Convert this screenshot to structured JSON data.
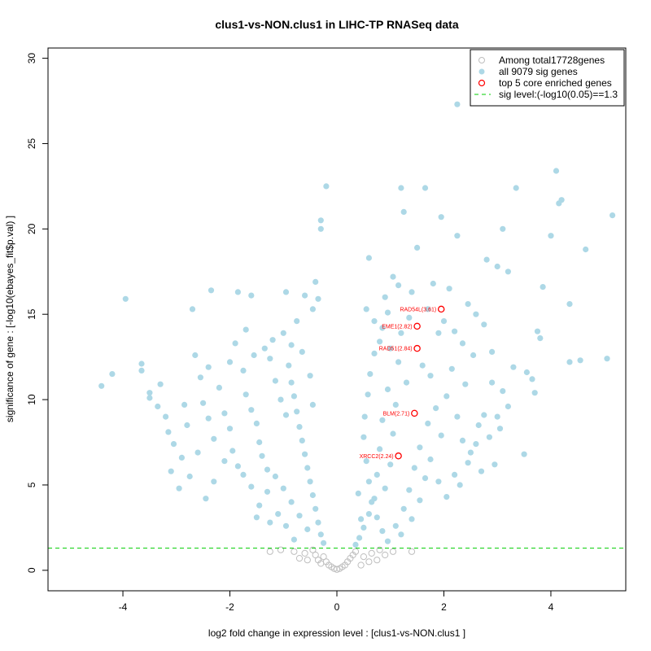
{
  "chart_data": {
    "type": "scatter",
    "title": "clus1-vs-NON.clus1 in LIHC-TP RNASeq data",
    "xlabel": "log2 fold change in expression level : [clus1-vs-NON.clus1 ]",
    "ylabel": "significance of gene : [-log10(ebayes_fit$p.val) ]",
    "xlim": [
      -5.4,
      5.4
    ],
    "ylim": [
      -1.2,
      30.6
    ],
    "x_ticks": [
      -4,
      -2,
      0,
      2,
      4
    ],
    "x_tick_labels": [
      "-4",
      "-2",
      "0",
      "2",
      "4"
    ],
    "y_ticks": [
      0,
      5,
      10,
      15,
      20,
      25,
      30
    ],
    "y_tick_labels": [
      "0",
      "5",
      "10",
      "15",
      "20",
      "25",
      "30"
    ],
    "sig_level": 1.3,
    "legend": {
      "position": "top-right",
      "entries": [
        {
          "label": "Among total17728genes",
          "symbol": "open-circle",
          "color": "#bebebe"
        },
        {
          "label": "all 9079 sig genes",
          "symbol": "filled-circle",
          "color": "#add8e6"
        },
        {
          "label": "top 5 core enriched genes",
          "symbol": "open-circle",
          "color": "#ff0000"
        },
        {
          "label": "sig level:(-log10(0.05)==1.3",
          "symbol": "dashed-line",
          "color": "#00cd00"
        }
      ]
    },
    "series": [
      {
        "name": "all 9079 sig genes",
        "color": "#add8e6",
        "points": [
          {
            "x": 2.25,
            "y": 27.3
          },
          {
            "x": 4.1,
            "y": 23.4
          },
          {
            "x": 4.2,
            "y": 21.7
          },
          {
            "x": 4.15,
            "y": 21.5
          },
          {
            "x": 5.15,
            "y": 20.8
          },
          {
            "x": 3.35,
            "y": 22.4
          },
          {
            "x": 1.65,
            "y": 22.4
          },
          {
            "x": 1.2,
            "y": 22.4
          },
          {
            "x": 1.25,
            "y": 21.0
          },
          {
            "x": 1.95,
            "y": 20.7
          },
          {
            "x": 3.1,
            "y": 20.0
          },
          {
            "x": 4.0,
            "y": 19.6
          },
          {
            "x": 2.25,
            "y": 19.6
          },
          {
            "x": 4.65,
            "y": 18.8
          },
          {
            "x": 1.5,
            "y": 18.9
          },
          {
            "x": 0.6,
            "y": 18.3
          },
          {
            "x": 2.8,
            "y": 18.2
          },
          {
            "x": 3.0,
            "y": 17.8
          },
          {
            "x": 3.2,
            "y": 17.5
          },
          {
            "x": 3.85,
            "y": 16.6
          },
          {
            "x": 4.35,
            "y": 15.6
          },
          {
            "x": 3.75,
            "y": 14.0
          },
          {
            "x": 3.8,
            "y": 13.6
          },
          {
            "x": 4.35,
            "y": 12.2
          },
          {
            "x": 4.55,
            "y": 12.3
          },
          {
            "x": 5.05,
            "y": 12.4
          },
          {
            "x": 3.55,
            "y": 11.6
          },
          {
            "x": 3.65,
            "y": 11.2
          },
          {
            "x": 3.7,
            "y": 10.4
          },
          {
            "x": 2.9,
            "y": 12.8
          },
          {
            "x": 3.2,
            "y": 9.6
          },
          {
            "x": 3.5,
            "y": 6.8
          },
          {
            "x": 3.05,
            "y": 8.3
          },
          {
            "x": 2.75,
            "y": 9.1
          },
          {
            "x": 2.6,
            "y": 7.4
          },
          {
            "x": 2.2,
            "y": 5.6
          },
          {
            "x": 2.3,
            "y": 5.0
          },
          {
            "x": 2.05,
            "y": 4.3
          },
          {
            "x": 1.9,
            "y": 5.2
          },
          {
            "x": 2.45,
            "y": 6.3
          },
          {
            "x": 0.55,
            "y": 15.3
          },
          {
            "x": 0.7,
            "y": 14.6
          },
          {
            "x": 0.85,
            "y": 14.2
          },
          {
            "x": 0.9,
            "y": 16.0
          },
          {
            "x": 1.05,
            "y": 17.2
          },
          {
            "x": 1.15,
            "y": 16.7
          },
          {
            "x": 0.95,
            "y": 15.1
          },
          {
            "x": 1.4,
            "y": 16.3
          },
          {
            "x": 1.8,
            "y": 16.8
          },
          {
            "x": 2.1,
            "y": 16.5
          },
          {
            "x": 2.45,
            "y": 15.6
          },
          {
            "x": 2.6,
            "y": 15.0
          },
          {
            "x": 2.75,
            "y": 14.4
          },
          {
            "x": 1.9,
            "y": 13.9
          },
          {
            "x": 2.35,
            "y": 13.3
          },
          {
            "x": 2.55,
            "y": 12.6
          },
          {
            "x": 1.6,
            "y": 12.0
          },
          {
            "x": 1.75,
            "y": 11.4
          },
          {
            "x": 2.15,
            "y": 11.8
          },
          {
            "x": 2.4,
            "y": 10.9
          },
          {
            "x": 2.05,
            "y": 10.2
          },
          {
            "x": 1.85,
            "y": 9.5
          },
          {
            "x": 2.25,
            "y": 9.0
          },
          {
            "x": 1.7,
            "y": 8.6
          },
          {
            "x": 1.95,
            "y": 7.9
          },
          {
            "x": 1.55,
            "y": 7.2
          },
          {
            "x": 1.75,
            "y": 6.5
          },
          {
            "x": 1.45,
            "y": 6.0
          },
          {
            "x": 1.65,
            "y": 5.4
          },
          {
            "x": 1.35,
            "y": 4.7
          },
          {
            "x": 1.55,
            "y": 4.1
          },
          {
            "x": 1.25,
            "y": 3.6
          },
          {
            "x": 1.4,
            "y": 3.0
          },
          {
            "x": 1.1,
            "y": 2.6
          },
          {
            "x": 1.2,
            "y": 2.1
          },
          {
            "x": 0.95,
            "y": 1.7
          },
          {
            "x": 0.85,
            "y": 2.3
          },
          {
            "x": 0.75,
            "y": 3.1
          },
          {
            "x": 0.65,
            "y": 4.0
          },
          {
            "x": 0.6,
            "y": 5.2
          },
          {
            "x": 0.55,
            "y": 6.4
          },
          {
            "x": 0.5,
            "y": 7.8
          },
          {
            "x": 0.52,
            "y": 9.0
          },
          {
            "x": 0.58,
            "y": 10.3
          },
          {
            "x": 0.62,
            "y": 11.5
          },
          {
            "x": 0.7,
            "y": 12.7
          },
          {
            "x": 0.8,
            "y": 13.4
          },
          {
            "x": 1.0,
            "y": 13.0
          },
          {
            "x": 1.15,
            "y": 12.2
          },
          {
            "x": 1.3,
            "y": 11.0
          },
          {
            "x": 0.95,
            "y": 10.6
          },
          {
            "x": 1.1,
            "y": 9.7
          },
          {
            "x": 0.85,
            "y": 8.8
          },
          {
            "x": 1.05,
            "y": 8.0
          },
          {
            "x": 0.8,
            "y": 7.1
          },
          {
            "x": 1.0,
            "y": 6.2
          },
          {
            "x": 0.75,
            "y": 5.6
          },
          {
            "x": 0.9,
            "y": 4.8
          },
          {
            "x": 0.7,
            "y": 4.2
          },
          {
            "x": 0.6,
            "y": 3.3
          },
          {
            "x": 0.5,
            "y": 2.5
          },
          {
            "x": 0.42,
            "y": 1.9
          },
          {
            "x": 0.35,
            "y": 1.5
          },
          {
            "x": 0.45,
            "y": 3.0
          },
          {
            "x": 1.2,
            "y": 13.9
          },
          {
            "x": 1.35,
            "y": 14.8
          },
          {
            "x": 1.7,
            "y": 15.3
          },
          {
            "x": 2.0,
            "y": 14.6
          },
          {
            "x": 2.2,
            "y": 14.0
          },
          {
            "x": 2.9,
            "y": 11.0
          },
          {
            "x": 3.1,
            "y": 10.5
          },
          {
            "x": 3.3,
            "y": 11.9
          },
          {
            "x": 2.65,
            "y": 8.5
          },
          {
            "x": 2.85,
            "y": 7.8
          },
          {
            "x": 2.5,
            "y": 6.9
          },
          {
            "x": 2.35,
            "y": 7.6
          },
          {
            "x": 3.0,
            "y": 9.0
          },
          {
            "x": 2.95,
            "y": 6.2
          },
          {
            "x": 2.7,
            "y": 5.8
          },
          {
            "x": 0.4,
            "y": 4.5
          },
          {
            "x": -0.2,
            "y": 22.5
          },
          {
            "x": -0.3,
            "y": 20.5
          },
          {
            "x": -0.3,
            "y": 20.0
          },
          {
            "x": -0.4,
            "y": 16.9
          },
          {
            "x": -0.35,
            "y": 15.9
          },
          {
            "x": -0.6,
            "y": 16.1
          },
          {
            "x": -0.45,
            "y": 15.3
          },
          {
            "x": -0.95,
            "y": 16.3
          },
          {
            "x": -1.85,
            "y": 16.3
          },
          {
            "x": -1.6,
            "y": 16.1
          },
          {
            "x": -0.75,
            "y": 14.6
          },
          {
            "x": -1.0,
            "y": 13.9
          },
          {
            "x": -1.2,
            "y": 13.5
          },
          {
            "x": -0.85,
            "y": 13.2
          },
          {
            "x": -1.7,
            "y": 14.1
          },
          {
            "x": -1.9,
            "y": 13.3
          },
          {
            "x": -2.35,
            "y": 16.4
          },
          {
            "x": -2.7,
            "y": 15.3
          },
          {
            "x": -3.95,
            "y": 15.9
          },
          {
            "x": -4.2,
            "y": 11.5
          },
          {
            "x": -4.4,
            "y": 10.8
          },
          {
            "x": -3.65,
            "y": 12.1
          },
          {
            "x": -3.65,
            "y": 11.7
          },
          {
            "x": -3.5,
            "y": 10.4
          },
          {
            "x": -3.5,
            "y": 10.1
          },
          {
            "x": -3.3,
            "y": 10.9
          },
          {
            "x": -3.2,
            "y": 9.0
          },
          {
            "x": -3.15,
            "y": 8.1
          },
          {
            "x": -3.05,
            "y": 7.4
          },
          {
            "x": -2.9,
            "y": 6.6
          },
          {
            "x": -2.8,
            "y": 8.5
          },
          {
            "x": -2.65,
            "y": 12.6
          },
          {
            "x": -2.55,
            "y": 11.3
          },
          {
            "x": -2.5,
            "y": 9.8
          },
          {
            "x": -2.4,
            "y": 8.9
          },
          {
            "x": -2.3,
            "y": 7.7
          },
          {
            "x": -2.2,
            "y": 10.7
          },
          {
            "x": -2.1,
            "y": 9.2
          },
          {
            "x": -2.0,
            "y": 8.3
          },
          {
            "x": -1.95,
            "y": 7.0
          },
          {
            "x": -1.85,
            "y": 6.1
          },
          {
            "x": -1.75,
            "y": 11.7
          },
          {
            "x": -1.7,
            "y": 10.3
          },
          {
            "x": -1.6,
            "y": 9.4
          },
          {
            "x": -1.5,
            "y": 8.6
          },
          {
            "x": -1.45,
            "y": 7.5
          },
          {
            "x": -1.4,
            "y": 6.7
          },
          {
            "x": -1.3,
            "y": 5.9
          },
          {
            "x": -1.25,
            "y": 12.4
          },
          {
            "x": -1.15,
            "y": 11.1
          },
          {
            "x": -1.05,
            "y": 10.0
          },
          {
            "x": -0.95,
            "y": 9.1
          },
          {
            "x": -0.9,
            "y": 12.0
          },
          {
            "x": -0.85,
            "y": 11.0
          },
          {
            "x": -0.8,
            "y": 10.2
          },
          {
            "x": -0.75,
            "y": 9.3
          },
          {
            "x": -0.7,
            "y": 8.4
          },
          {
            "x": -0.65,
            "y": 7.6
          },
          {
            "x": -0.6,
            "y": 6.8
          },
          {
            "x": -0.55,
            "y": 6.0
          },
          {
            "x": -0.5,
            "y": 5.2
          },
          {
            "x": -0.45,
            "y": 4.4
          },
          {
            "x": -0.4,
            "y": 3.6
          },
          {
            "x": -0.35,
            "y": 2.8
          },
          {
            "x": -0.3,
            "y": 2.1
          },
          {
            "x": -0.25,
            "y": 1.6
          },
          {
            "x": -0.55,
            "y": 2.4
          },
          {
            "x": -0.7,
            "y": 3.2
          },
          {
            "x": -0.85,
            "y": 4.0
          },
          {
            "x": -1.0,
            "y": 4.8
          },
          {
            "x": -1.15,
            "y": 5.5
          },
          {
            "x": -1.3,
            "y": 4.6
          },
          {
            "x": -1.45,
            "y": 3.8
          },
          {
            "x": -1.6,
            "y": 4.9
          },
          {
            "x": -1.75,
            "y": 5.6
          },
          {
            "x": -1.1,
            "y": 3.3
          },
          {
            "x": -0.95,
            "y": 2.6
          },
          {
            "x": -1.25,
            "y": 2.8
          },
          {
            "x": -1.5,
            "y": 3.1
          },
          {
            "x": -0.8,
            "y": 1.8
          },
          {
            "x": -2.1,
            "y": 6.4
          },
          {
            "x": -2.3,
            "y": 5.2
          },
          {
            "x": -2.45,
            "y": 4.2
          },
          {
            "x": -2.6,
            "y": 6.9
          },
          {
            "x": -2.75,
            "y": 5.5
          },
          {
            "x": -2.95,
            "y": 4.8
          },
          {
            "x": -3.1,
            "y": 5.8
          },
          {
            "x": -2.0,
            "y": 12.2
          },
          {
            "x": -1.35,
            "y": 13.0
          },
          {
            "x": -1.55,
            "y": 12.6
          },
          {
            "x": -2.85,
            "y": 9.7
          },
          {
            "x": -3.35,
            "y": 9.6
          },
          {
            "x": -2.4,
            "y": 11.9
          },
          {
            "x": -0.65,
            "y": 12.8
          },
          {
            "x": -0.5,
            "y": 11.4
          },
          {
            "x": -0.45,
            "y": 9.7
          }
        ]
      },
      {
        "name": "Among total17728genes",
        "color": "#bebebe",
        "points": [
          {
            "x": -0.45,
            "y": 1.2
          },
          {
            "x": -0.4,
            "y": 0.9
          },
          {
            "x": -0.35,
            "y": 0.6
          },
          {
            "x": -0.3,
            "y": 0.4
          },
          {
            "x": -0.25,
            "y": 0.8
          },
          {
            "x": -0.2,
            "y": 0.5
          },
          {
            "x": -0.15,
            "y": 0.3
          },
          {
            "x": -0.1,
            "y": 0.2
          },
          {
            "x": -0.05,
            "y": 0.1
          },
          {
            "x": 0.0,
            "y": 0.05
          },
          {
            "x": 0.05,
            "y": 0.1
          },
          {
            "x": 0.1,
            "y": 0.2
          },
          {
            "x": 0.15,
            "y": 0.3
          },
          {
            "x": 0.2,
            "y": 0.5
          },
          {
            "x": 0.25,
            "y": 0.7
          },
          {
            "x": 0.3,
            "y": 0.9
          },
          {
            "x": 0.35,
            "y": 1.1
          },
          {
            "x": 0.5,
            "y": 0.8
          },
          {
            "x": 0.65,
            "y": 1.0
          },
          {
            "x": 0.8,
            "y": 1.2
          },
          {
            "x": 0.9,
            "y": 0.9
          },
          {
            "x": 1.05,
            "y": 1.1
          },
          {
            "x": 1.4,
            "y": 1.1
          },
          {
            "x": -0.6,
            "y": 1.0
          },
          {
            "x": -0.8,
            "y": 1.1
          },
          {
            "x": -1.05,
            "y": 1.2
          },
          {
            "x": -1.25,
            "y": 1.1
          },
          {
            "x": -0.55,
            "y": 0.6
          },
          {
            "x": 0.6,
            "y": 0.5
          },
          {
            "x": -0.7,
            "y": 0.7
          },
          {
            "x": 0.75,
            "y": 0.6
          },
          {
            "x": 0.45,
            "y": 0.3
          }
        ]
      }
    ],
    "top_genes": [
      {
        "label": "RAD54L(3.61)",
        "x": 1.95,
        "y": 15.3
      },
      {
        "label": "EME1(2.82)",
        "x": 1.5,
        "y": 14.3
      },
      {
        "label": "RAD51(2.84)",
        "x": 1.5,
        "y": 13.0
      },
      {
        "label": "BLM(2.71)",
        "x": 1.45,
        "y": 9.2
      },
      {
        "label": "XRCC2(2.24)",
        "x": 1.15,
        "y": 6.7
      }
    ]
  }
}
